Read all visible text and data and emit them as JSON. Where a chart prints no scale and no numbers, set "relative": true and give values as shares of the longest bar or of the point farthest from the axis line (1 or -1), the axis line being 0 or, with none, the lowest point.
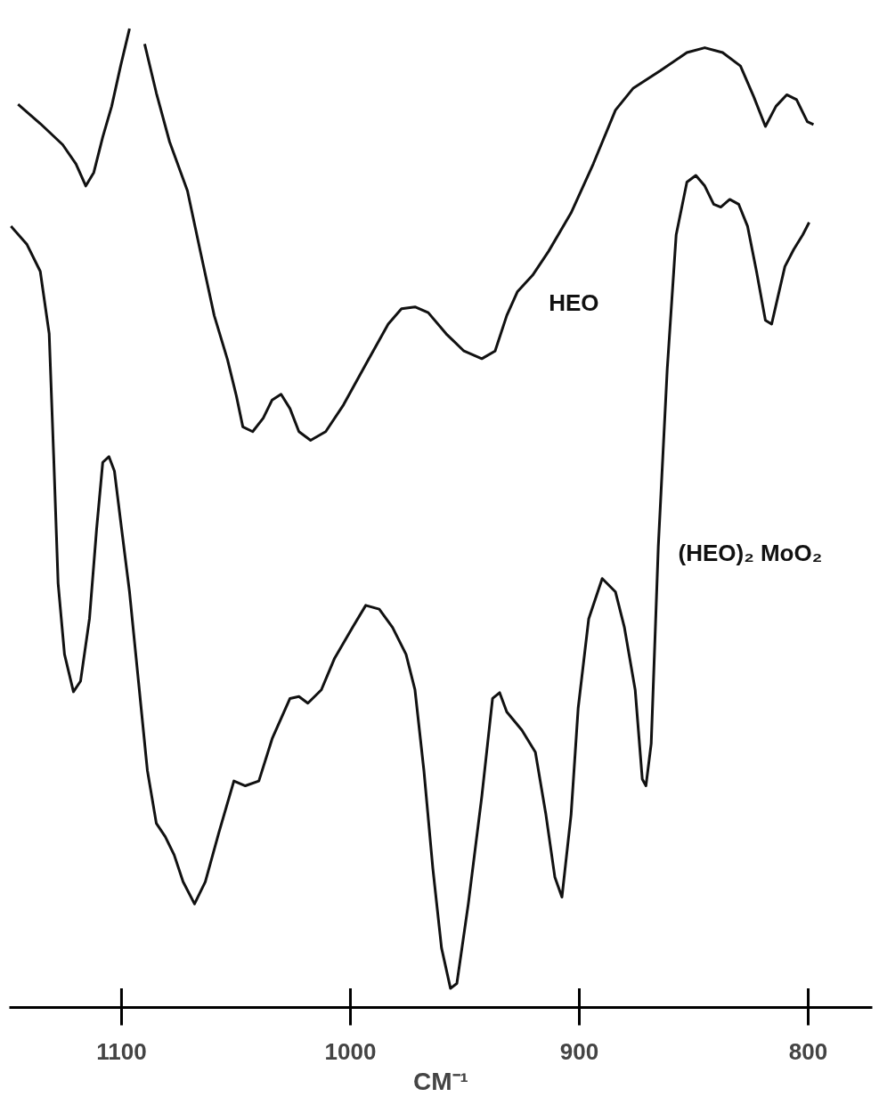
{
  "chart_data": {
    "type": "line",
    "relative": true,
    "xlabel": "CM⁻¹",
    "xlim": [
      1149,
      772
    ],
    "xticks": [
      1100,
      1000,
      900,
      800
    ],
    "grid": false,
    "marker": "none",
    "line_style": "solid",
    "series": [
      {
        "name": "HEO",
        "color": "#111111",
        "x": [
          1145.2,
          1135.5,
          1125.7,
          1119.9,
          1115.6,
          1112.1,
          1108.2,
          1104.3,
          1100.4,
          1096.5,
          1093.0,
          1089.9,
          1084.8,
          1079.0,
          1071.2,
          1065.4,
          1059.5,
          1053.7,
          1049.8,
          1047.0,
          1042.7,
          1038.1,
          1034.2,
          1030.3,
          1026.4,
          1022.5,
          1017.4,
          1010.8,
          1003.0,
          993.3,
          983.5,
          977.7,
          971.8,
          966.0,
          958.2,
          950.4,
          942.6,
          936.8,
          931.7,
          927.0,
          920.4,
          913.4,
          903.6,
          893.9,
          884.2,
          876.4,
          864.7,
          853.0,
          845.2,
          837.4,
          829.6,
          823.8,
          818.7,
          814.1,
          809.4,
          805.1,
          800.4,
          797.7
        ],
        "values": [
          0.921,
          0.901,
          0.879,
          0.859,
          0.836,
          0.85,
          0.887,
          0.919,
          0.961,
          1.0,
          null,
          0.984,
          0.933,
          0.882,
          0.831,
          0.766,
          0.701,
          0.655,
          0.617,
          0.585,
          0.58,
          0.594,
          0.613,
          0.619,
          0.604,
          0.58,
          0.571,
          0.58,
          0.608,
          0.65,
          0.692,
          0.708,
          0.71,
          0.704,
          0.682,
          0.664,
          0.656,
          0.664,
          0.701,
          0.726,
          0.743,
          0.768,
          0.808,
          0.859,
          0.915,
          0.938,
          0.956,
          0.975,
          0.98,
          0.975,
          0.961,
          0.929,
          0.898,
          0.919,
          0.931,
          0.926,
          0.903,
          0.9
        ]
      },
      {
        "name": "(HEO)₂ MoO₂",
        "color": "#111111",
        "x": [
          1148.3,
          1141.3,
          1135.5,
          1131.6,
          1129.6,
          1127.7,
          1124.9,
          1121.0,
          1117.9,
          1114.0,
          1110.9,
          1108.2,
          1105.5,
          1103.1,
          1100.4,
          1096.5,
          1092.6,
          1088.7,
          1084.8,
          1080.9,
          1077.0,
          1073.1,
          1068.1,
          1063.4,
          1057.5,
          1050.9,
          1045.9,
          1040.0,
          1034.2,
          1026.4,
          1022.5,
          1018.6,
          1012.7,
          1006.9,
          999.1,
          993.3,
          987.4,
          981.6,
          975.7,
          971.8,
          967.9,
          964.0,
          960.2,
          956.3,
          953.5,
          948.5,
          942.6,
          937.9,
          934.8,
          931.7,
          925.1,
          919.2,
          914.6,
          910.7,
          907.6,
          903.6,
          900.5,
          895.9,
          890.0,
          884.2,
          880.3,
          875.6,
          872.5,
          870.9,
          868.6,
          865.5,
          861.6,
          857.7,
          853.0,
          849.1,
          845.2,
          841.3,
          838.2,
          834.3,
          830.4,
          826.5,
          822.6,
          818.7,
          816.0,
          813.3,
          810.2,
          806.3,
          802.4,
          799.6
        ],
        "values": [
          0.794,
          0.775,
          0.747,
          0.682,
          0.552,
          0.422,
          0.348,
          0.309,
          0.32,
          0.385,
          0.478,
          0.548,
          0.554,
          0.539,
          0.487,
          0.413,
          0.32,
          0.227,
          0.172,
          0.158,
          0.139,
          0.111,
          0.088,
          0.111,
          0.162,
          0.216,
          0.211,
          0.216,
          0.26,
          0.302,
          0.304,
          0.297,
          0.311,
          0.344,
          0.376,
          0.399,
          0.395,
          0.376,
          0.348,
          0.311,
          0.227,
          0.125,
          0.042,
          0.0,
          0.005,
          0.088,
          0.2,
          0.302,
          0.308,
          0.288,
          0.269,
          0.246,
          0.181,
          0.116,
          0.095,
          0.181,
          0.292,
          0.385,
          0.427,
          0.413,
          0.376,
          0.311,
          0.218,
          0.211,
          0.255,
          0.46,
          0.645,
          0.785,
          0.84,
          0.847,
          0.836,
          0.817,
          0.814,
          0.822,
          0.817,
          0.794,
          0.747,
          0.696,
          0.692,
          0.72,
          0.752,
          0.77,
          0.785,
          0.798
        ]
      }
    ]
  }
}
